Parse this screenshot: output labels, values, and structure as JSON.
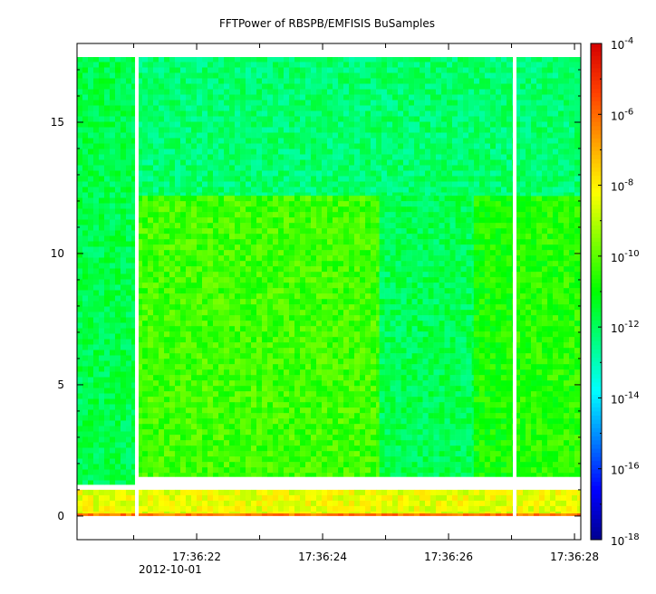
{
  "chart_data": {
    "type": "heatmap",
    "title": "FFTPower of RBSPB/EMFISIS  BuSamples",
    "xlabel": "",
    "ylabel": "",
    "x_axis": {
      "type": "time",
      "date_label": "2012-10-01",
      "range": [
        "17:36:20.10",
        "17:36:28.10"
      ],
      "ticks": [
        "17:36:22",
        "17:36:24",
        "17:36:26",
        "17:36:28"
      ],
      "minor_ticks": [
        "17:36:21",
        "17:36:23",
        "17:36:25",
        "17:36:27"
      ]
    },
    "y_axis": {
      "range": [
        -0.9,
        18.0
      ],
      "ticks": [
        0,
        5,
        10,
        15
      ]
    },
    "colorbar": {
      "scale": "log",
      "range": [
        1e-18,
        0.0001
      ],
      "ticks": [
        {
          "base": "10",
          "exp": "-4",
          "value": 0.0001
        },
        {
          "base": "10",
          "exp": "-6",
          "value": 1e-06
        },
        {
          "base": "10",
          "exp": "-8",
          "value": 1e-08
        },
        {
          "base": "10",
          "exp": "-10",
          "value": 1e-10
        },
        {
          "base": "10",
          "exp": "-12",
          "value": 1e-12
        },
        {
          "base": "10",
          "exp": "-14",
          "value": 1e-14
        },
        {
          "base": "10",
          "exp": "-16",
          "value": 1e-16
        },
        {
          "base": "10",
          "exp": "-18",
          "value": 1e-18
        }
      ],
      "colormap": [
        "#00008f",
        "#0000ff",
        "#0080ff",
        "#00ffff",
        "#00ff80",
        "#00ff00",
        "#80ff00",
        "#ffff00",
        "#ffa000",
        "#ff4000",
        "#d40000"
      ]
    },
    "data_gaps": [
      "17:36:21.05",
      "17:36:27.05"
    ],
    "max_frequency": 17.5,
    "regions": [
      {
        "x_range": [
          "17:36:20.10",
          "17:36:21.05"
        ],
        "y_range": [
          1.2,
          17.5
        ],
        "log10_power": -11.8
      },
      {
        "x_range": [
          "17:36:21.05",
          "17:36:27.05"
        ],
        "y_range": [
          12.2,
          17.5
        ],
        "log10_power": -12.2
      },
      {
        "x_range": [
          "17:36:21.05",
          "17:36:24.90"
        ],
        "y_range": [
          1.5,
          12.2
        ],
        "log10_power": -10.3
      },
      {
        "x_range": [
          "17:36:24.90",
          "17:36:26.40"
        ],
        "y_range": [
          1.5,
          12.2
        ],
        "log10_power": -11.9
      },
      {
        "x_range": [
          "17:36:26.40",
          "17:36:27.05"
        ],
        "y_range": [
          1.5,
          12.2
        ],
        "log10_power": -10.8
      },
      {
        "x_range": [
          "17:36:27.05",
          "17:36:28.10"
        ],
        "y_range": [
          1.5,
          12.2
        ],
        "log10_power": -10.6
      },
      {
        "x_range": [
          "17:36:27.05",
          "17:36:28.10"
        ],
        "y_range": [
          12.2,
          17.5
        ],
        "log10_power": -12.2
      },
      {
        "x_range": [
          "17:36:20.10",
          "17:36:28.10"
        ],
        "y_range": [
          0.1,
          1.0
        ],
        "log10_power": -8.4
      },
      {
        "x_range": [
          "17:36:20.10",
          "17:36:28.10"
        ],
        "y_range": [
          0.0,
          0.1
        ],
        "log10_power": -6.2
      }
    ]
  }
}
